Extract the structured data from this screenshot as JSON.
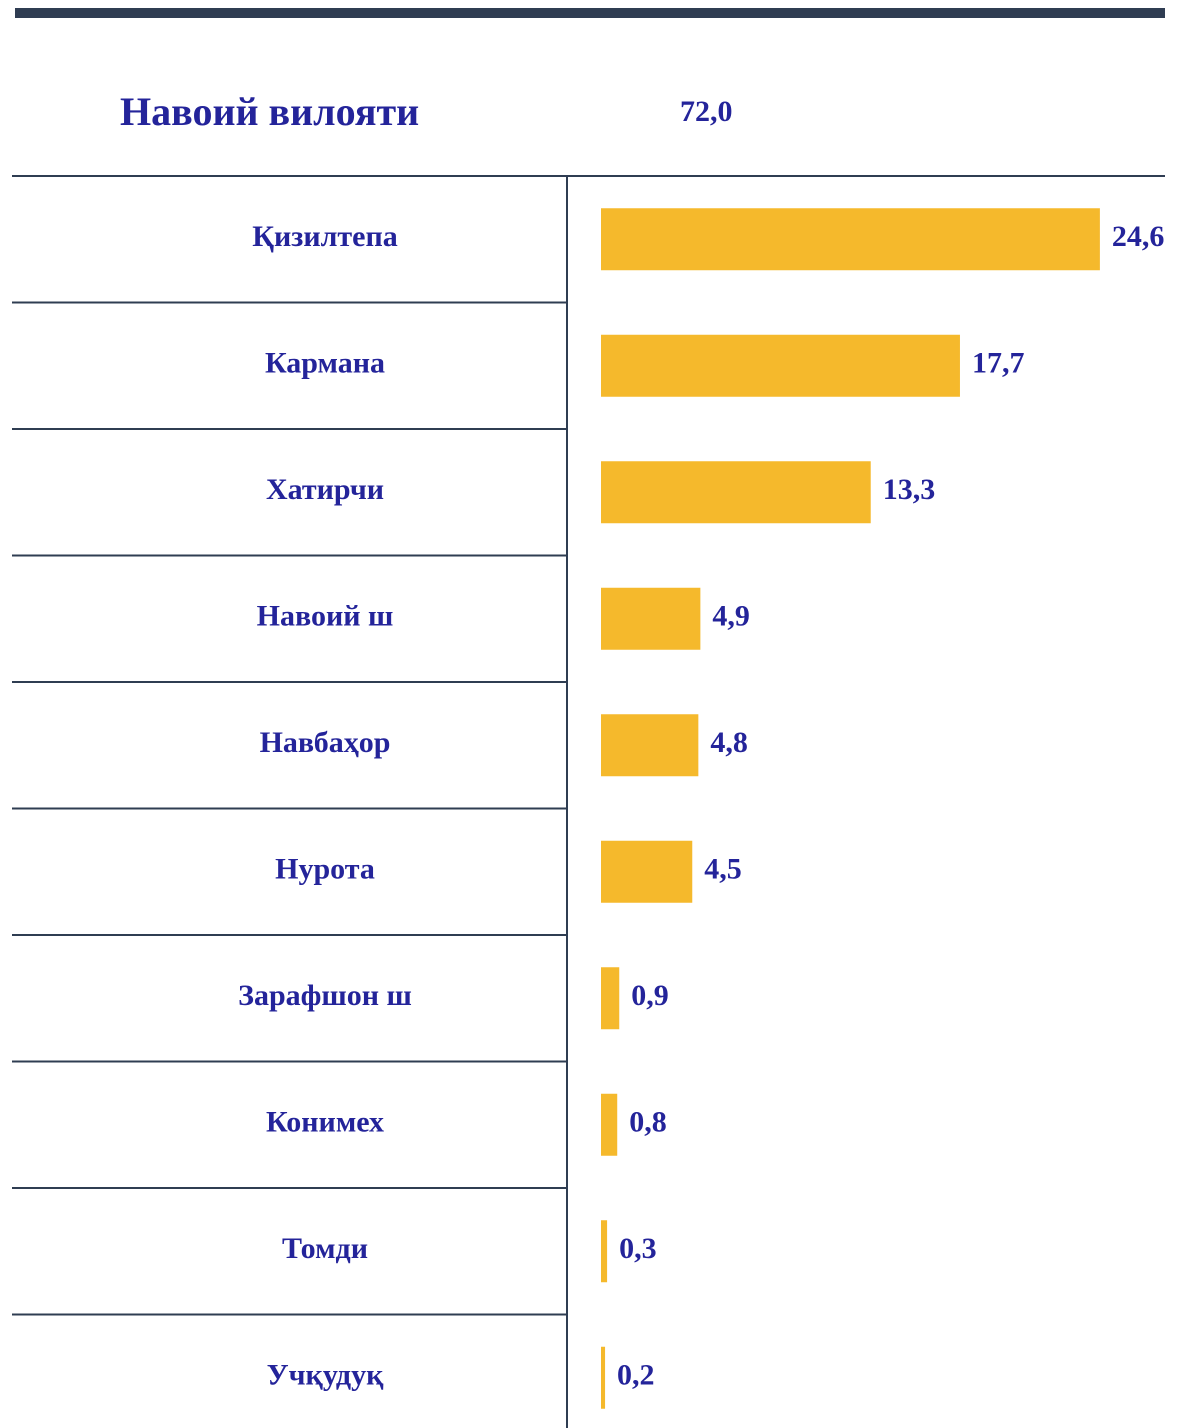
{
  "chart_data": {
    "type": "bar",
    "orientation": "horizontal",
    "title": "Навоий вилояти",
    "total": 72.0,
    "total_label": "72,0",
    "categories": [
      "Қизилтепа",
      "Кармана",
      "Хатирчи",
      "Навоий ш",
      "Навбаҳор",
      "Нурота",
      "Зарафшон ш",
      "Конимех",
      "Томди",
      "Учқудуқ"
    ],
    "values": [
      24.6,
      17.7,
      13.3,
      4.9,
      4.8,
      4.5,
      0.9,
      0.8,
      0.3,
      0.2
    ],
    "value_labels": [
      "24,6",
      "17,7",
      "13,3",
      "4,9",
      "4,8",
      "4,5",
      "0,9",
      "0,8",
      "0,3",
      "0,2"
    ],
    "color": "#f5b92c",
    "xlim": [
      0,
      25
    ]
  }
}
